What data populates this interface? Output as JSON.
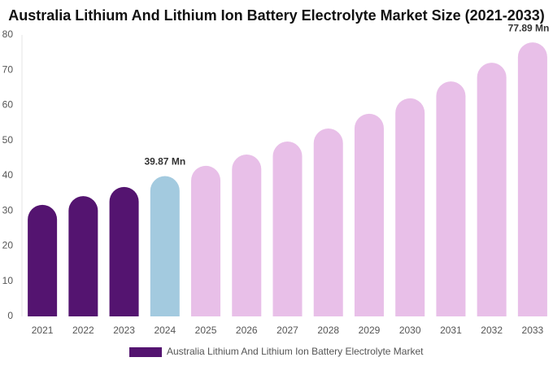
{
  "chart_data": {
    "type": "bar",
    "title": "Australia Lithium And Lithium Ion Battery Electrolyte Market Size (2021-2033)",
    "categories": [
      "2021",
      "2022",
      "2023",
      "2024",
      "2025",
      "2026",
      "2027",
      "2028",
      "2029",
      "2030",
      "2031",
      "2032",
      "2033"
    ],
    "series": [
      {
        "name": "Australia Lithium And Lithium Ion Battery Electrolyte Market",
        "color": "#541470",
        "values": [
          31.7,
          34.2,
          36.8,
          39.87,
          42.8,
          46,
          49.7,
          53.4,
          57.6,
          62,
          66.8,
          72.1,
          77.89
        ],
        "value_labels": [
          null,
          null,
          null,
          "39.87 Mn",
          null,
          null,
          null,
          null,
          null,
          null,
          null,
          null,
          "77.89 Mn"
        ],
        "bar_colors": [
          "#541470",
          "#541470",
          "#541470",
          "#a3cadf",
          "#e8bfe8",
          "#e8bfe8",
          "#e8bfe8",
          "#e8bfe8",
          "#e8bfe8",
          "#e8bfe8",
          "#e8bfe8",
          "#e8bfe8",
          "#e8bfe8"
        ]
      }
    ],
    "ylim": [
      0,
      80
    ],
    "yticks": [
      0,
      10,
      20,
      30,
      40,
      50,
      60,
      70,
      80
    ],
    "grid": false
  }
}
